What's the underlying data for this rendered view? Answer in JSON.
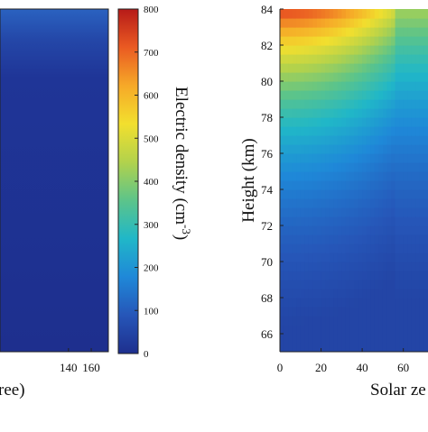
{
  "chart_data": [
    {
      "type": "heatmap",
      "panel": "left (cropped)",
      "title": "",
      "xlabel": "ree)",
      "ylabel": "",
      "x_ticks": [
        140,
        160
      ],
      "xlim": [
        80,
        175
      ],
      "z_uniform_value": 50,
      "top_band_value": 115
    },
    {
      "type": "colorbar",
      "label_main": "Electric density (cm",
      "label_exp": "-3",
      "label_close": ")",
      "ticks": [
        0,
        100,
        200,
        300,
        400,
        500,
        600,
        700,
        800
      ],
      "range": [
        0,
        800
      ],
      "colormap": [
        "#1e2f8e",
        "#2656b8",
        "#1f88d8",
        "#20b7c8",
        "#5cc48a",
        "#b2d24c",
        "#f2df2e",
        "#f6a928",
        "#ea5a22",
        "#b61a18"
      ]
    },
    {
      "type": "heatmap",
      "panel": "right",
      "title": "",
      "xlabel": "Solar ze",
      "ylabel": "Height (km)",
      "x_ticks": [
        0,
        20,
        40,
        60
      ],
      "y_ticks": [
        66,
        68,
        70,
        72,
        74,
        76,
        78,
        80,
        82,
        84
      ],
      "xlim": [
        0,
        72
      ],
      "ylim": [
        65,
        84
      ],
      "terminator_sza": 56,
      "model": {
        "day": {
          "v_top": 740,
          "scale_height_km": 6.5,
          "sza_factor": 0.75
        },
        "night": {
          "v_top": 430,
          "scale_height_km": 7.5
        },
        "floor": 50
      }
    }
  ]
}
